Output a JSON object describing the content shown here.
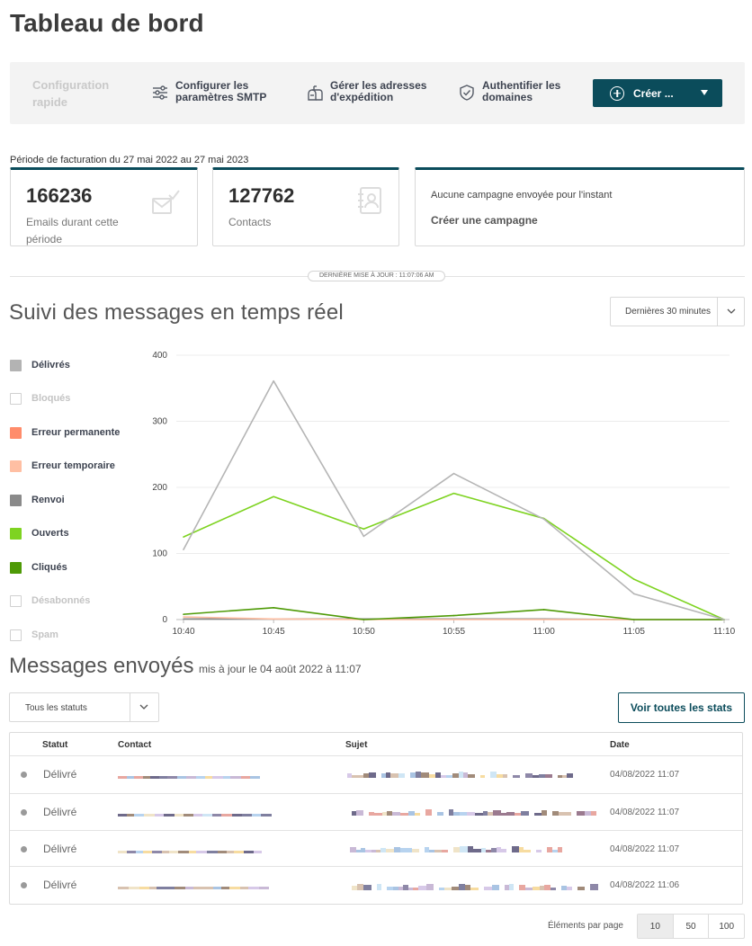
{
  "page": {
    "title": "Tableau de bord"
  },
  "quickbar": {
    "title": "Configuration rapide",
    "items": [
      {
        "label": "Configurer les\nparamètres SMTP",
        "icon": "sliders-icon"
      },
      {
        "label": "Gérer les adresses\nd'expédition",
        "icon": "mailbox-icon"
      },
      {
        "label": "Authentifier les\ndomaines",
        "icon": "shield-check-icon"
      }
    ],
    "create_label": "Créer ..."
  },
  "billing": {
    "period": "Période de facturation du 27 mai 2022 au 27 mai 2023"
  },
  "cards": {
    "emails": {
      "value": "166236",
      "label": "Emails durant cette période",
      "icon": "envelope-check-icon"
    },
    "contacts": {
      "value": "127762",
      "label": "Contacts",
      "icon": "address-book-icon"
    },
    "campaign": {
      "text": "Aucune campagne envoyée pour l'instant",
      "link": "Créer une campagne"
    }
  },
  "last_update": "DERNIÈRE MISE À JOUR : 11:07:06 AM",
  "realtime": {
    "title": "Suivi des messages en temps réel",
    "range_label": "Dernières 30 minutes",
    "legend": [
      {
        "label": "Délivrés",
        "color": "#b3b3b3",
        "active": true
      },
      {
        "label": "Bloqués",
        "color": "#ffffff",
        "active": false
      },
      {
        "label": "Erreur permanente",
        "color": "#ff8c6b",
        "active": true
      },
      {
        "label": "Erreur temporaire",
        "color": "#ffbfa3",
        "active": true
      },
      {
        "label": "Renvoi",
        "color": "#8a8a8a",
        "active": true
      },
      {
        "label": "Ouverts",
        "color": "#7ed321",
        "active": true
      },
      {
        "label": "Cliqués",
        "color": "#4e9a06",
        "active": true
      },
      {
        "label": "Désabonnés",
        "color": "#ffffff",
        "active": false
      },
      {
        "label": "Spam",
        "color": "#ffffff",
        "active": false
      }
    ]
  },
  "chart_data": {
    "type": "line",
    "x": [
      "10:40",
      "10:45",
      "10:50",
      "10:55",
      "11:00",
      "11:05",
      "11:10"
    ],
    "ylim": [
      0,
      400
    ],
    "yticks": [
      "0",
      "100",
      "200",
      "300",
      "400"
    ],
    "series": [
      {
        "name": "Délivrés",
        "color": "#b5b5b5",
        "values": [
          106,
          361,
          126,
          221,
          152,
          39,
          0
        ]
      },
      {
        "name": "Ouverts",
        "color": "#7ed321",
        "values": [
          125,
          186,
          137,
          191,
          153,
          61,
          0
        ]
      },
      {
        "name": "Cliqués",
        "color": "#4e9a06",
        "values": [
          8,
          18,
          0,
          6,
          15,
          0,
          0
        ]
      },
      {
        "name": "Erreur temporaire",
        "color": "#ffbfa3",
        "values": [
          4,
          1,
          0,
          0,
          0,
          0,
          0
        ]
      },
      {
        "name": "Renvoi",
        "color": "#8a8a8a",
        "values": [
          1,
          1,
          1,
          1,
          1,
          0,
          0
        ]
      }
    ]
  },
  "messages": {
    "title": "Messages envoyés",
    "subtitle": "mis à jour le 04 août 2022 à 11:07",
    "status_filter": "Tous les statuts",
    "all_stats_label": "Voir toutes les stats",
    "columns": [
      "Statut",
      "Contact",
      "Sujet",
      "Date"
    ],
    "rows": [
      {
        "status": "Délivré",
        "date": "04/08/2022 11:07"
      },
      {
        "status": "Délivré",
        "date": "04/08/2022 11:07"
      },
      {
        "status": "Délivré",
        "date": "04/08/2022 11:07"
      },
      {
        "status": "Délivré",
        "date": "04/08/2022 11:06"
      }
    ],
    "pager_label": "Éléments par page",
    "page_sizes": [
      "10",
      "50",
      "100"
    ]
  }
}
